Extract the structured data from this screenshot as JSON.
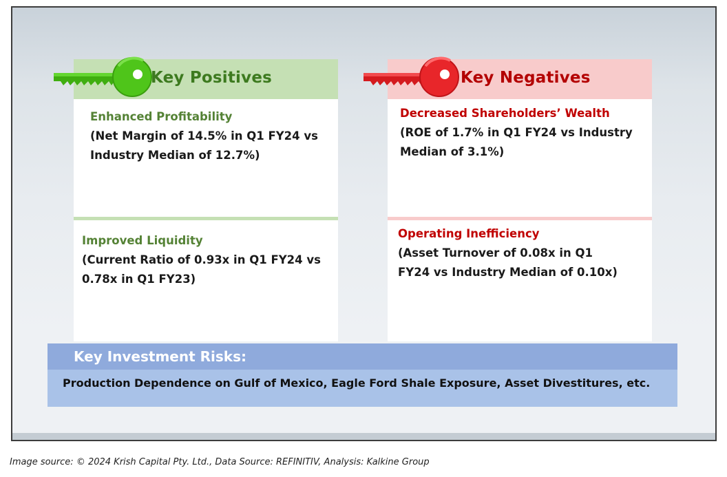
{
  "positives": {
    "header": "Key Positives",
    "items": [
      {
        "title": "Enhanced Profitability",
        "body": "(Net Margin of 14.5% in Q1 FY24 vs Industry Median of 12.7%)"
      },
      {
        "title": "Improved Liquidity",
        "body": "(Current Ratio of 0.93x in Q1 FY24 vs 0.78x in Q1 FY23)"
      }
    ]
  },
  "negatives": {
    "header": "Key Negatives",
    "items": [
      {
        "title": "Decreased Shareholders’ Wealth",
        "body": "(ROE of 1.7% in Q1 FY24 vs Industry Median of 3.1%)"
      },
      {
        "title": "Operating Inefficiency",
        "body": "(Asset Turnover of 0.08x in Q1 FY24 vs Industry Median of 0.10x)"
      }
    ]
  },
  "risks": {
    "title": "Key Investment Risks:",
    "text": "Production Dependence on Gulf of Mexico, Eagle Ford Shale Exposure, Asset Divestitures, etc."
  },
  "source": "Image source: © 2024 Krish Capital Pty. Ltd., Data Source: REFINITIV, Analysis: Kalkine Group",
  "colors": {
    "positive_accent": "#4fc51a",
    "negative_accent": "#e8262a",
    "positive_header_bg": "#c5e0b4",
    "negative_header_bg": "#f8cbcb",
    "risk_bar": "#8faadc",
    "risk_body": "#a9c2e8"
  },
  "icons": {
    "positive": "green-key-icon",
    "negative": "red-key-icon"
  }
}
